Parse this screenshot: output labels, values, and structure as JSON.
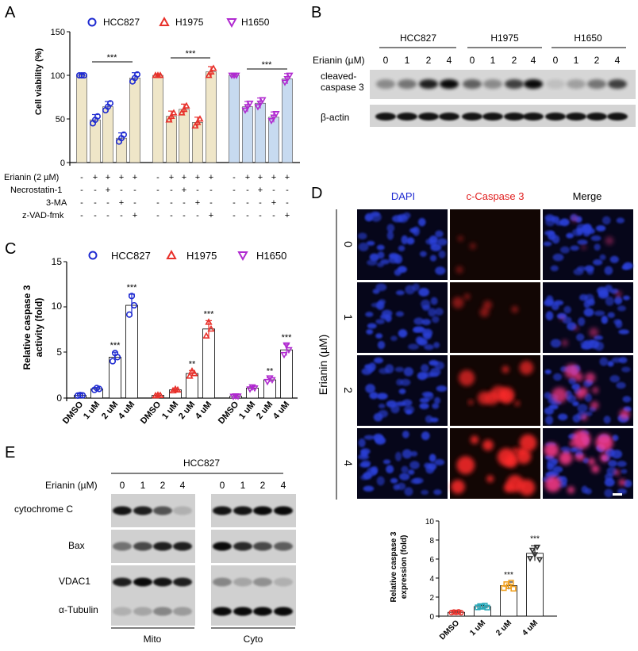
{
  "colors": {
    "hcc827": "#1f2bd1",
    "h1975": "#e8302a",
    "h1650": "#b02ad0",
    "bar_beige": "#efe6c8",
    "bar_blue": "#c7daf0",
    "orange": "#f0a020",
    "teal": "#29a8b8"
  },
  "panelA": {
    "letter": "A",
    "ylabel": "Cell viability (%)",
    "yticks": [
      "0",
      "50",
      "100",
      "150"
    ],
    "legend": [
      "HCC827",
      "H1975",
      "H1650"
    ],
    "sig": "***",
    "rows": [
      {
        "label": "Erianin (2 µM)",
        "signs": [
          "-",
          "+",
          "+",
          "+",
          "+",
          "-",
          "+",
          "+",
          "+",
          "+",
          "-",
          "+",
          "+",
          "+",
          "+"
        ]
      },
      {
        "label": "Necrostatin-1",
        "signs": [
          "-",
          "-",
          "+",
          "-",
          "-",
          "-",
          "-",
          "+",
          "-",
          "-",
          "-",
          "-",
          "+",
          "-",
          "-"
        ]
      },
      {
        "label": "3-MA",
        "signs": [
          "-",
          "-",
          "-",
          "+",
          "-",
          "-",
          "-",
          "-",
          "+",
          "-",
          "-",
          "-",
          "-",
          "+",
          "-"
        ]
      },
      {
        "label": "z-VAD-fmk",
        "signs": [
          "-",
          "-",
          "-",
          "-",
          "+",
          "-",
          "-",
          "-",
          "-",
          "+",
          "-",
          "-",
          "-",
          "-",
          "+"
        ]
      }
    ]
  },
  "panelB": {
    "letter": "B",
    "cells": [
      "HCC827",
      "H1975",
      "H1650"
    ],
    "treatment": "Erianin (µM)",
    "doses": [
      "0",
      "1",
      "2",
      "4",
      "0",
      "1",
      "2",
      "4",
      "0",
      "1",
      "2",
      "4"
    ],
    "rows": [
      "cleaved-",
      "caspase 3",
      "β-actin"
    ]
  },
  "panelC": {
    "letter": "C",
    "ylabel1": "Relative caspase 3",
    "ylabel2": "activity (fold)",
    "yticks": [
      "0",
      "5",
      "10",
      "15"
    ],
    "legend": [
      "HCC827",
      "H1975",
      "H1650"
    ],
    "xticks": [
      "DMSO",
      "1 uM",
      "2 uM",
      "4 uM",
      "DMSO",
      "1 uM",
      "2 uM",
      "4 uM",
      "DMSO",
      "1 uM",
      "2 uM",
      "4 uM"
    ],
    "sig": [
      "",
      "",
      "***",
      "***",
      "",
      "",
      "**",
      "***",
      "",
      "",
      "**",
      "***"
    ]
  },
  "panelD": {
    "letter": "D",
    "columns": [
      "DAPI",
      "c-Caspase 3",
      "Merge"
    ],
    "ylabel": "Erianin (µM)",
    "rows": [
      "0",
      "1",
      "2",
      "4"
    ],
    "bar_ylabel1": "Relative caspase 3",
    "bar_ylabel2": "expression (fold)",
    "bar_yticks": [
      "0",
      "2",
      "4",
      "6",
      "8",
      "10"
    ],
    "bar_xticks": [
      "DMSO",
      "1 uM",
      "2 uM",
      "4 uM"
    ],
    "bar_sig": [
      "",
      "",
      "***",
      "***"
    ]
  },
  "panelE": {
    "letter": "E",
    "cell": "HCC827",
    "treatment": "Erianin (µM)",
    "doses": [
      "0",
      "1",
      "2",
      "4",
      "0",
      "1",
      "2",
      "4"
    ],
    "rows": [
      "cytochrome C",
      "Bax",
      "VDAC1",
      "α-Tubulin"
    ],
    "fractions": [
      "Mito",
      "Cyto"
    ]
  },
  "chart_data": [
    {
      "type": "bar",
      "title": "",
      "ylabel": "Cell viability (%)",
      "ylim": [
        0,
        150
      ],
      "categories": [
        "-",
        "E",
        "E+Nec-1",
        "E+3-MA",
        "E+zVAD"
      ],
      "series": [
        {
          "name": "HCC827",
          "values": [
            100,
            49,
            64,
            28,
            97
          ]
        },
        {
          "name": "H1975",
          "values": [
            100,
            53,
            61,
            46,
            104
          ]
        },
        {
          "name": "H1650",
          "values": [
            100,
            64,
            68,
            52,
            96
          ]
        }
      ]
    },
    {
      "type": "bar",
      "title": "",
      "ylabel": "Relative caspase 3 activity (fold)",
      "ylim": [
        0,
        15
      ],
      "categories": [
        "DMSO",
        "1 uM",
        "2 uM",
        "4 uM"
      ],
      "series": [
        {
          "name": "HCC827",
          "values": [
            0.3,
            1.0,
            4.5,
            10.2
          ]
        },
        {
          "name": "H1975",
          "values": [
            0.3,
            0.9,
            2.7,
            7.6
          ]
        },
        {
          "name": "H1650",
          "values": [
            0.2,
            1.1,
            2.0,
            5.3
          ]
        }
      ]
    },
    {
      "type": "bar",
      "title": "",
      "ylabel": "Relative caspase 3 expression (fold)",
      "ylim": [
        0,
        10
      ],
      "categories": [
        "DMSO",
        "1 uM",
        "2 uM",
        "4 uM"
      ],
      "values": [
        0.4,
        1.0,
        3.2,
        6.6
      ]
    }
  ]
}
